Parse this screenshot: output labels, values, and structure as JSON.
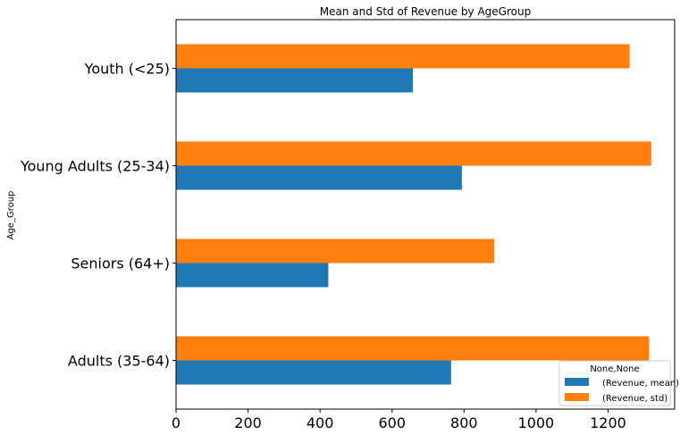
{
  "chart_data": {
    "type": "bar",
    "orientation": "horizontal",
    "title": "Mean and Std of Revenue by AgeGroup",
    "xlabel": "",
    "ylabel": "Age_Group",
    "categories": [
      "Adults (35-64)",
      "Seniors (64+)",
      "Young Adults (25-34)",
      "Youth (<25)"
    ],
    "series": [
      {
        "name": "(Revenue, mean)",
        "color": "#1f77b4",
        "values": [
          764,
          423,
          794,
          658
        ]
      },
      {
        "name": "(Revenue, std)",
        "color": "#ff7f0e",
        "values": [
          1314,
          884,
          1320,
          1260
        ]
      }
    ],
    "xlim": [
      0,
      1385
    ],
    "xticks": [
      0,
      200,
      400,
      600,
      800,
      1000,
      1200
    ],
    "xtick_labels": [
      "0",
      "200",
      "400",
      "600",
      "800",
      "1000",
      "1200"
    ],
    "grid": false,
    "legend": {
      "title": "None,None",
      "placement": "lower-right"
    }
  }
}
